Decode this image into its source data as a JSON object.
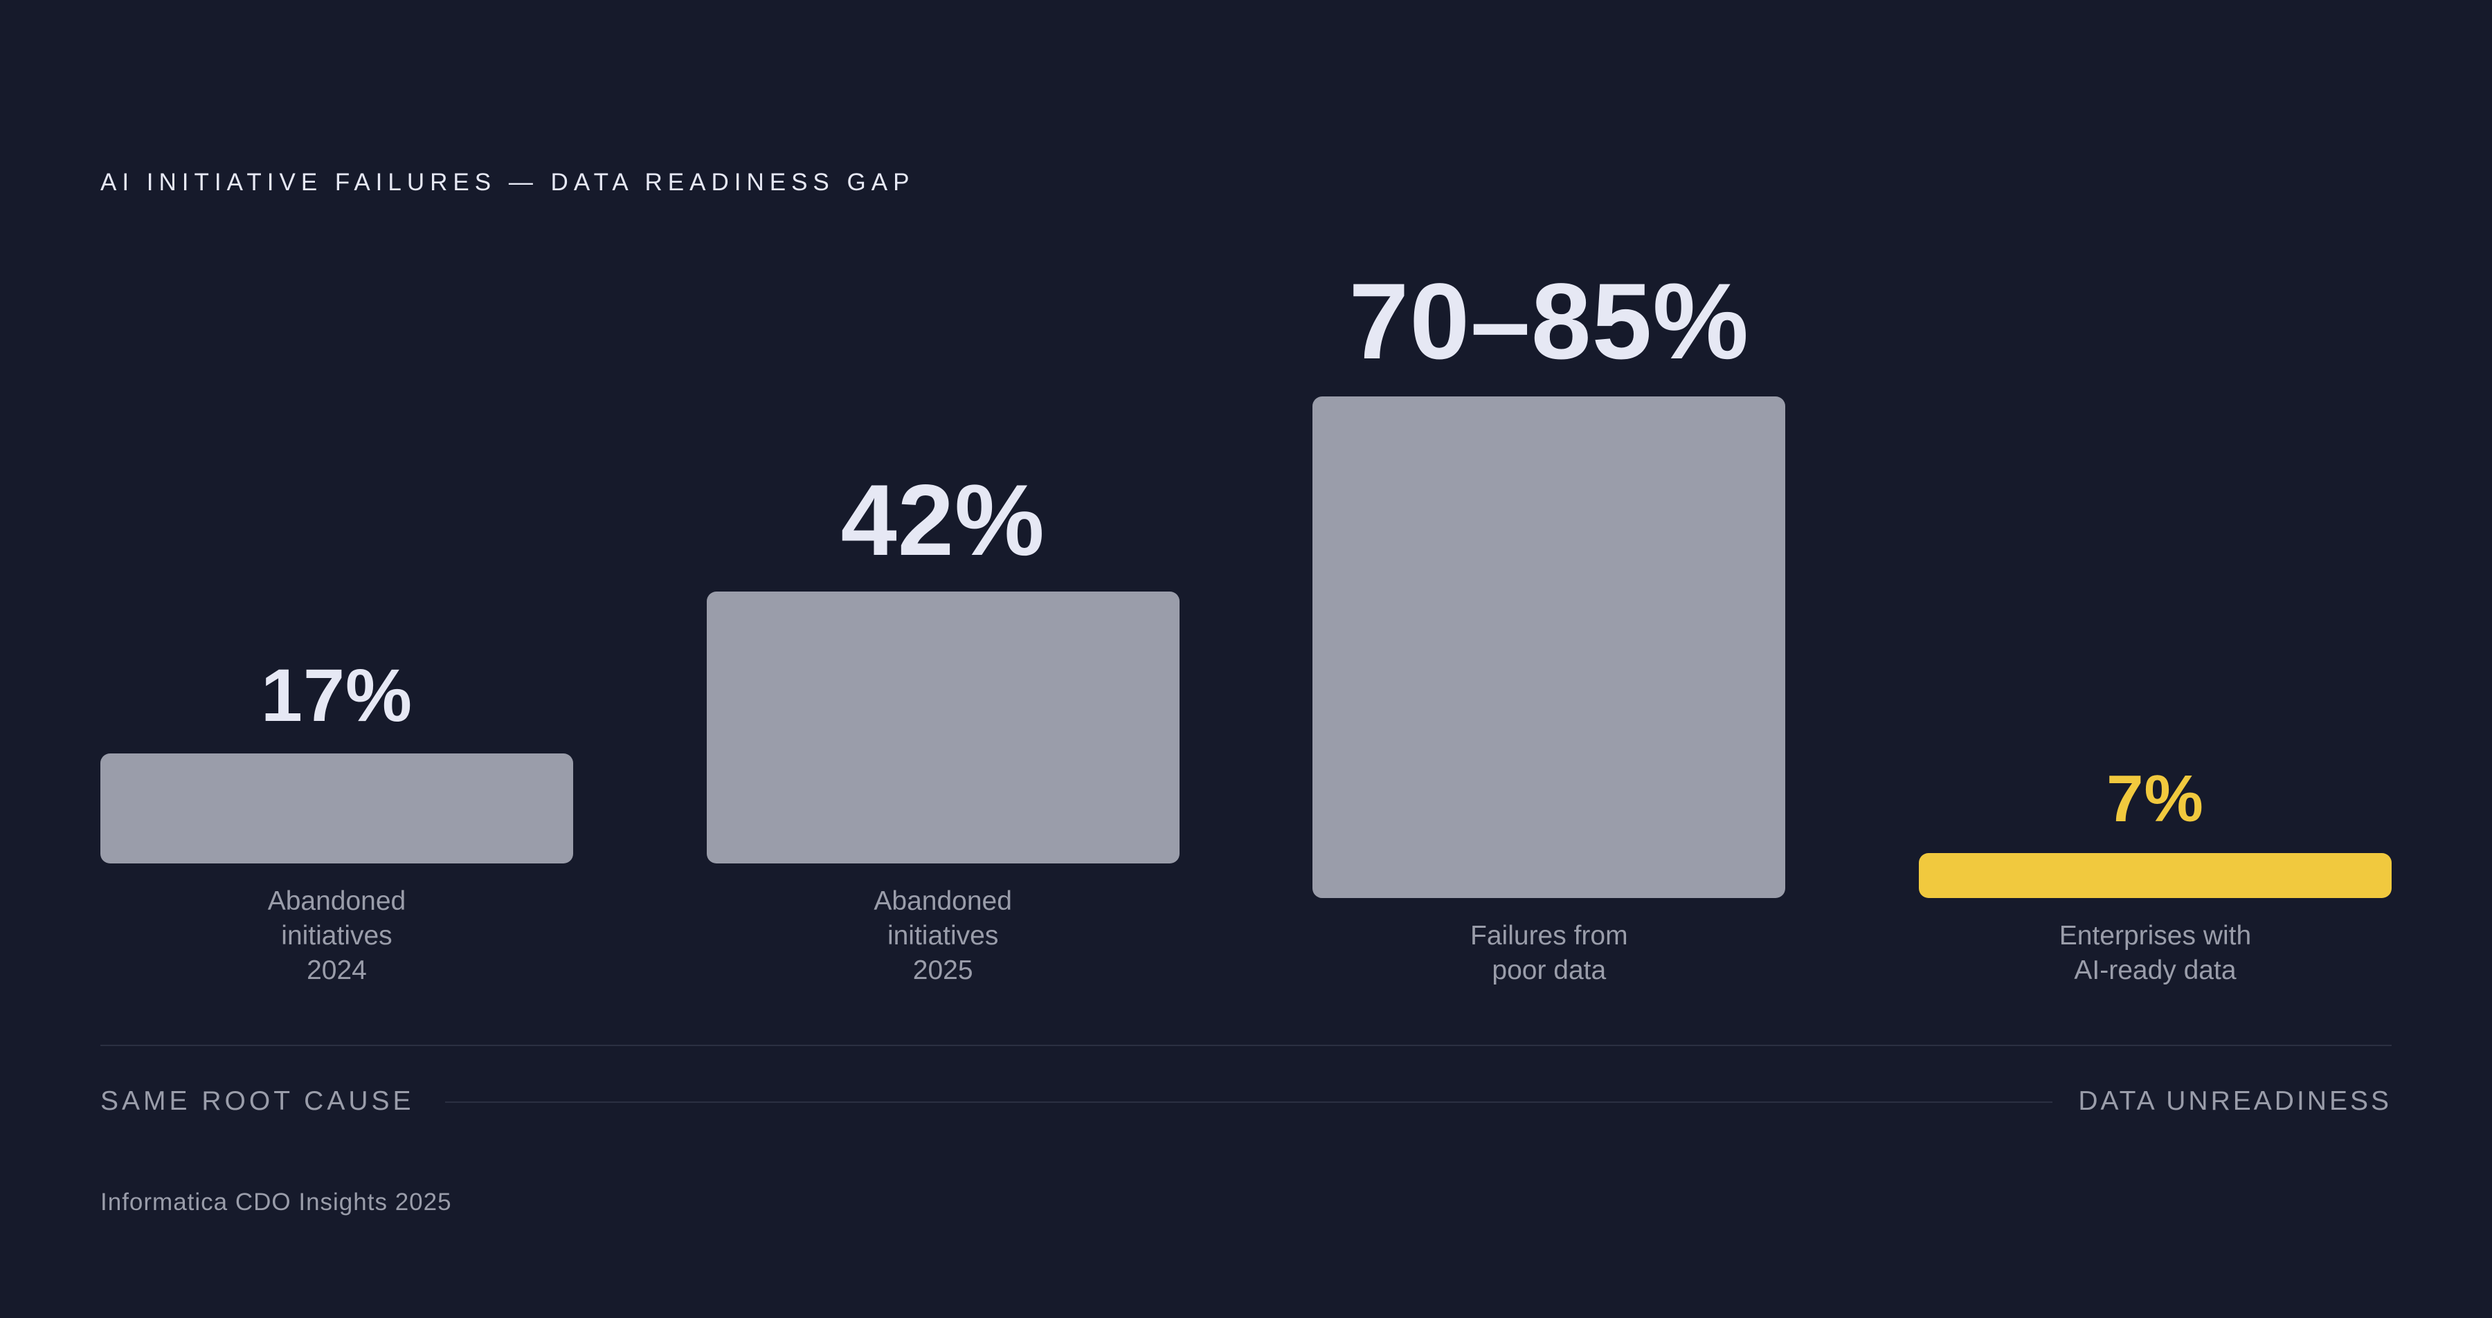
{
  "chart_data": {
    "type": "bar",
    "title": "AI INITIATIVE FAILURES — DATA READINESS GAP",
    "categories": [
      "Abandoned\ninitiatives\n2024",
      "Abandoned\ninitiatives\n2025",
      "Failures from\npoor data",
      "Enterprises with\nAI-ready data"
    ],
    "values": [
      17,
      42,
      77.5,
      7
    ],
    "value_labels": [
      "17%",
      "42%",
      "70–85%",
      "7%"
    ],
    "colors": [
      "#9a9daa",
      "#9a9daa",
      "#9a9daa",
      "#f1c93e"
    ],
    "value_label_colors": [
      "#e6e8f4",
      "#e6e8f4",
      "#e6e8f4",
      "#f1c93e"
    ],
    "footer_left": "SAME ROOT CAUSE",
    "footer_right": "DATA UNREADINESS",
    "source": "Informatica CDO Insights 2025"
  }
}
